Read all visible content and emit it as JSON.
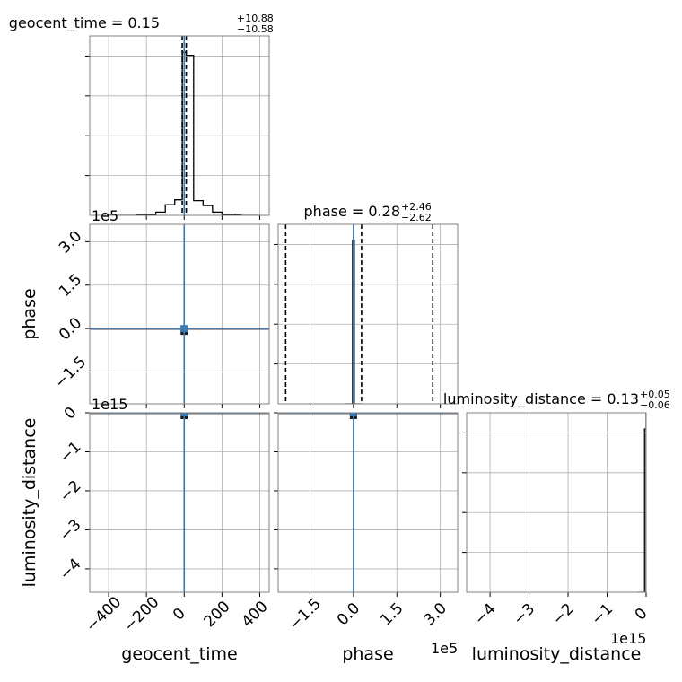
{
  "colors": {
    "truth": "#3a7ab4",
    "hist": "#000000",
    "grid": "#b0b0b0",
    "frame": "#808080",
    "background": "#ffffff"
  },
  "chart_data": {
    "type": "corner",
    "parameters": [
      "geocent_time",
      "phase",
      "luminosity_distance"
    ],
    "grid": true,
    "titles": [
      {
        "param": "geocent_time",
        "text": "geocent_time = 0.15",
        "plus": "+10.88",
        "minus": "−10.58"
      },
      {
        "param": "phase",
        "text": "phase = 0.28",
        "plus": "+2.46",
        "minus": "−2.62"
      },
      {
        "param": "luminosity_distance",
        "text": "luminosity_distance = 0.13",
        "plus": "+0.05",
        "minus": "−0.06"
      }
    ],
    "axis_labels": {
      "x": [
        "geocent_time",
        "phase",
        "luminosity_distance"
      ],
      "y": [
        "phase",
        "luminosity_distance"
      ]
    },
    "offset_labels": {
      "phase_y": "1e5",
      "luminosity_distance_y": "1e15",
      "phase_x": "1e5",
      "luminosity_distance_x": "1e15"
    },
    "ranges": {
      "geocent_time": [
        -500,
        450
      ],
      "phase": [
        -2.6,
        3.6
      ],
      "luminosity_distance": [
        -4.6,
        0
      ]
    },
    "ticks": {
      "geocent_time": {
        "values": [
          -400,
          -200,
          0,
          200,
          400
        ],
        "labels": [
          "−400",
          "−200",
          "0",
          "200",
          "400"
        ]
      },
      "phase": {
        "values": [
          -1.5,
          0,
          1.5,
          3
        ],
        "labels": [
          "−1.5",
          "0.0",
          "1.5",
          "3.0"
        ]
      },
      "luminosity_distance": {
        "values": [
          -4,
          -3,
          -2,
          -1,
          0
        ],
        "labels": [
          "−4",
          "−3",
          "−2",
          "−1",
          "0"
        ]
      }
    },
    "truths": {
      "geocent_time": 0,
      "phase": 0,
      "luminosity_distance": 0
    },
    "quantiles": {
      "geocent_time": [
        -10.43,
        0.15,
        11.03
      ],
      "phase": [
        -2.34,
        0.28,
        2.74
      ],
      "luminosity_distance": [
        0.07,
        0.13,
        0.18
      ]
    },
    "hist_1d": {
      "geocent_time": {
        "edges": [
          -400,
          -350,
          -300,
          -250,
          -200,
          -150,
          -100,
          -50,
          -10,
          10,
          50,
          100,
          150,
          200,
          250,
          300,
          350,
          400
        ],
        "counts": [
          0,
          0,
          0,
          0.002,
          0.006,
          0.02,
          0.065,
          0.095,
          1.0,
          0.98,
          0.09,
          0.06,
          0.02,
          0.006,
          0.002,
          0,
          0
        ]
      },
      "phase": {
        "edges": [
          -0.3,
          -0.03,
          0.03,
          0.3
        ],
        "counts": [
          0,
          1.0,
          0
        ]
      },
      "luminosity_distance": {
        "edges": [
          -0.22,
          -0.04,
          0
        ],
        "counts": [
          0,
          1.0
        ]
      }
    }
  }
}
